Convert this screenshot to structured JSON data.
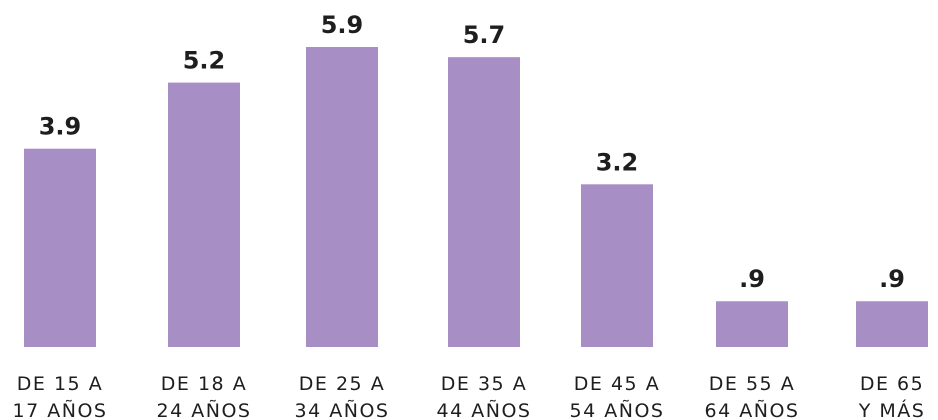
{
  "chart_data": {
    "type": "bar",
    "categories": [
      [
        "DE 15 A",
        "17 AÑOS"
      ],
      [
        "DE 18 A",
        "24 AÑOS"
      ],
      [
        "DE 25 A",
        "34 AÑOS"
      ],
      [
        "DE 35 A",
        "44 AÑOS"
      ],
      [
        "DE 45 A",
        "54 AÑOS"
      ],
      [
        "DE 55 A",
        "64 AÑOS"
      ],
      [
        "DE 65",
        "Y MÁS"
      ]
    ],
    "values": [
      3.9,
      5.2,
      5.9,
      5.7,
      3.2,
      0.9,
      0.9
    ],
    "value_labels": [
      "3.9",
      "5.2",
      "5.9",
      "5.7",
      "3.2",
      ".9",
      ".9"
    ],
    "color": "#a78fc6"
  }
}
